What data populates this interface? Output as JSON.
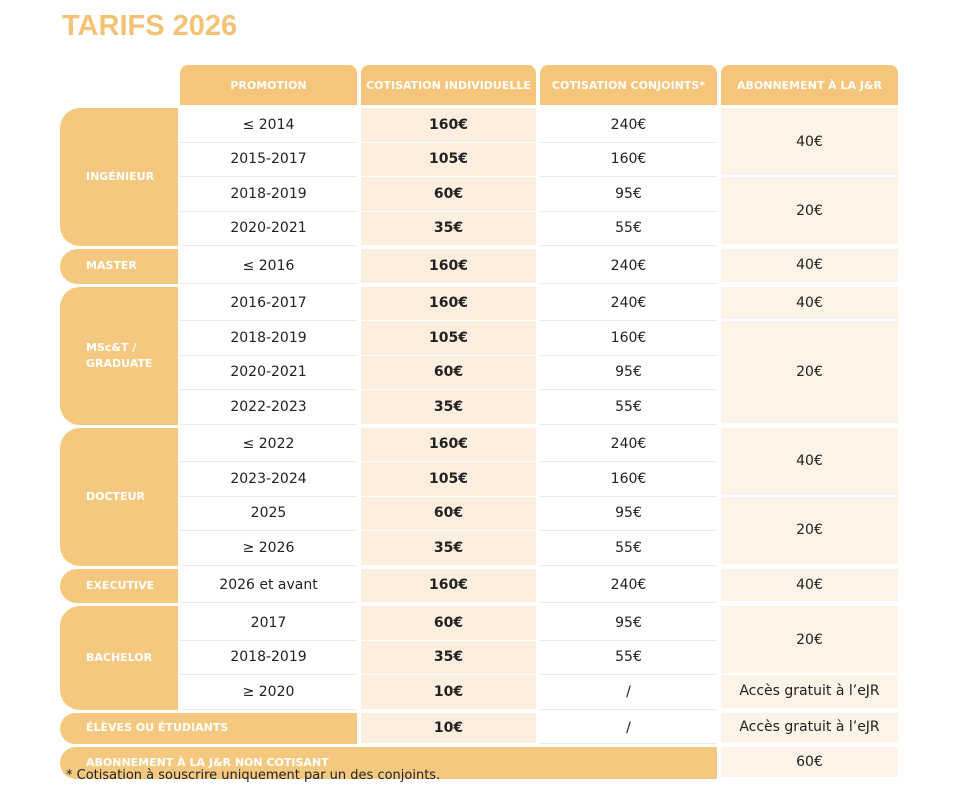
{
  "title": "TARIFS 2026",
  "table": {
    "headers": [
      "PROMOTION",
      "COTISATION INDIVIDUELLE",
      "COTISATION CONJOINTS*",
      "ABONNEMENT À LA J&R"
    ],
    "groups": [
      {
        "label": "INGÉNIEUR",
        "rows": [
          {
            "promotion": "≤ 2014",
            "individuelle": "160€",
            "conjoints": "240€",
            "abonnement": "40€"
          },
          {
            "promotion": "2015-2017",
            "individuelle": "105€",
            "conjoints": "160€",
            "abonnement": null
          },
          {
            "promotion": "2018-2019",
            "individuelle": "60€",
            "conjoints": "95€",
            "abonnement": "20€"
          },
          {
            "promotion": "2020-2021",
            "individuelle": "35€",
            "conjoints": "55€",
            "abonnement": null
          }
        ]
      },
      {
        "label": "MASTER",
        "rows": [
          {
            "promotion": "≤ 2016",
            "individuelle": "160€",
            "conjoints": "240€",
            "abonnement": "40€"
          }
        ]
      },
      {
        "label": "MSc&T / GRADUATE",
        "rows": [
          {
            "promotion": "2016-2017",
            "individuelle": "160€",
            "conjoints": "240€",
            "abonnement": "40€"
          },
          {
            "promotion": "2018-2019",
            "individuelle": "105€",
            "conjoints": "160€",
            "abonnement": "20€"
          },
          {
            "promotion": "2020-2021",
            "individuelle": "60€",
            "conjoints": "95€",
            "abonnement": null
          },
          {
            "promotion": "2022-2023",
            "individuelle": "35€",
            "conjoints": "55€",
            "abonnement": null
          }
        ]
      },
      {
        "label": "DOCTEUR",
        "rows": [
          {
            "promotion": "≤ 2022",
            "individuelle": "160€",
            "conjoints": "240€",
            "abonnement": "40€"
          },
          {
            "promotion": "2023-2024",
            "individuelle": "105€",
            "conjoints": "160€",
            "abonnement": null
          },
          {
            "promotion": "2025",
            "individuelle": "60€",
            "conjoints": "95€",
            "abonnement": "20€"
          },
          {
            "promotion": "≥ 2026",
            "individuelle": "35€",
            "conjoints": "55€",
            "abonnement": null
          }
        ]
      },
      {
        "label": "EXECUTIVE",
        "rows": [
          {
            "promotion": "2026 et avant",
            "individuelle": "160€",
            "conjoints": "240€",
            "abonnement": "40€"
          }
        ]
      },
      {
        "label": "BACHELOR",
        "rows": [
          {
            "promotion": "2017",
            "individuelle": "60€",
            "conjoints": "95€",
            "abonnement": "20€"
          },
          {
            "promotion": "2018-2019",
            "individuelle": "35€",
            "conjoints": "55€",
            "abonnement": null
          },
          {
            "promotion": "≥ 2020",
            "individuelle": "10€",
            "conjoints": "/",
            "abonnement": "Accès gratuit à l’eJR"
          }
        ]
      }
    ],
    "eleves": {
      "label": "ÉLÈVES OU ÉTUDIANTS",
      "individuelle": "10€",
      "conjoints": "/",
      "abonnement": "Accès gratuit à l’eJR"
    },
    "non_cotisant": {
      "label": "ABONNEMENT À LA J&R NON COTISANT",
      "abonnement": "60€"
    }
  },
  "footnote": "* Cotisation à souscrire uniquement par un des conjoints."
}
